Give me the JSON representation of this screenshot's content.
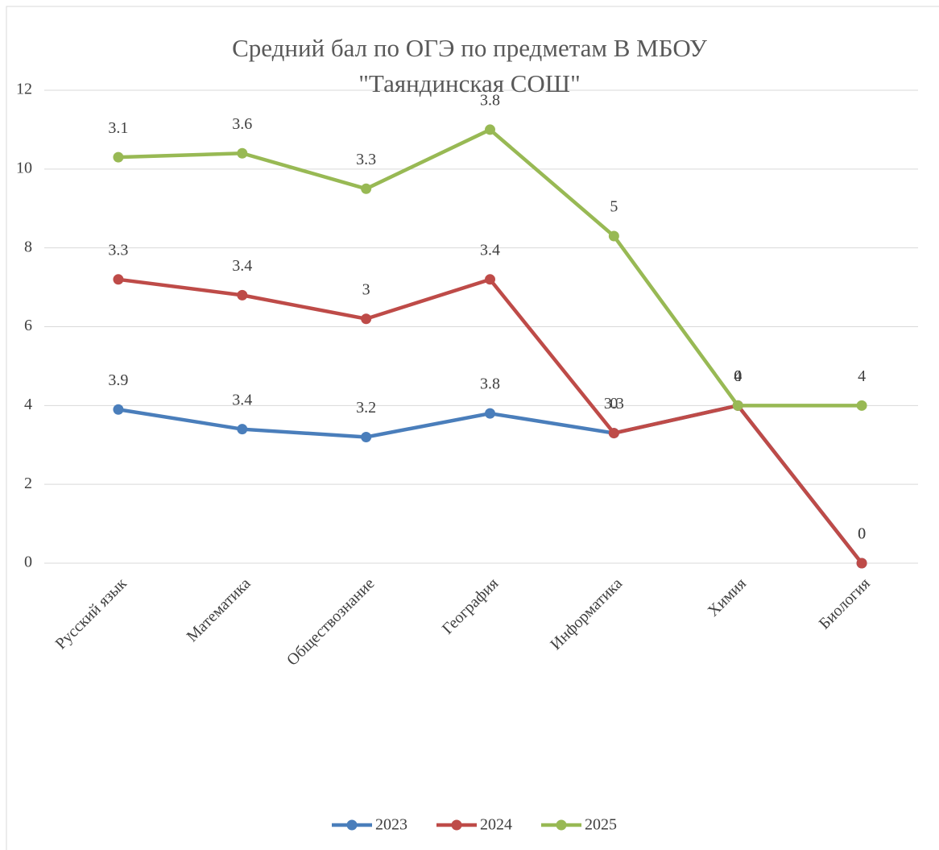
{
  "chart_data": {
    "type": "line",
    "stacked": true,
    "title": "Средний бал по ОГЭ по предметам В МБОУ\n\"Таяндинская СОШ\"",
    "categories": [
      "Русский язык",
      "Математика",
      "Обществознание",
      "География",
      "Информатика",
      "Химия",
      "Биология"
    ],
    "series": [
      {
        "name": "2023",
        "color": "#4a7ebb",
        "values": [
          3.9,
          3.4,
          3.2,
          3.8,
          3.3,
          4,
          0
        ]
      },
      {
        "name": "2024",
        "color": "#be4b48",
        "values": [
          3.3,
          3.4,
          3,
          3.4,
          0,
          0,
          0
        ]
      },
      {
        "name": "2025",
        "color": "#98b954",
        "values": [
          3.1,
          3.6,
          3.3,
          3.8,
          5,
          0,
          4
        ]
      }
    ],
    "ylim": [
      0,
      12
    ],
    "yticks": [
      0,
      2,
      4,
      6,
      8,
      10,
      12
    ],
    "grid": true,
    "legend": "bottom"
  }
}
